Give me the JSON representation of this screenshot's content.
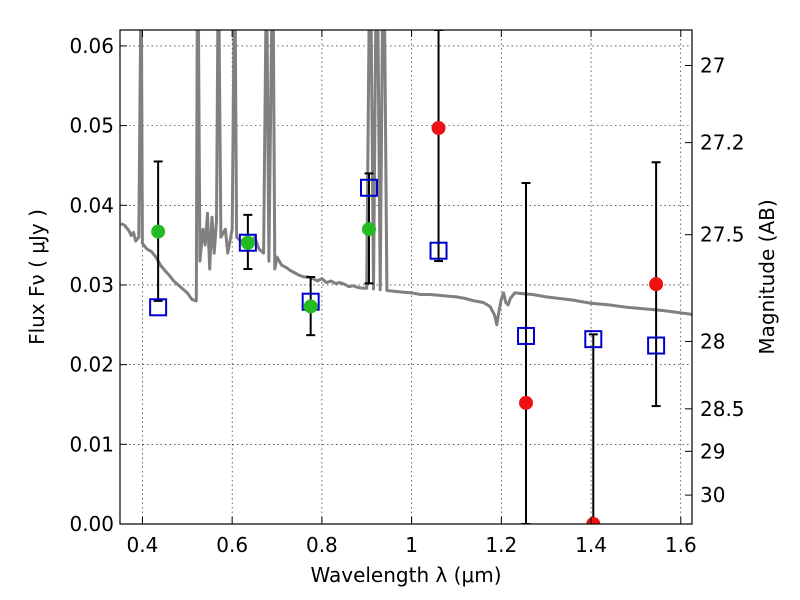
{
  "chart_data": {
    "type": "scatter",
    "xlabel": "Wavelength  λ (μm)",
    "ylabel": "Flux  Fν  ( μJy )",
    "ylabel_right": "Magnitude (AB)",
    "xlim": [
      0.35,
      1.625
    ],
    "ylim": [
      0.0,
      0.062
    ],
    "grid": true,
    "x_ticks": [
      {
        "value": 0.4,
        "label": "0.4"
      },
      {
        "value": 0.6,
        "label": "0.6"
      },
      {
        "value": 0.8,
        "label": "0.8"
      },
      {
        "value": 1.0,
        "label": "1"
      },
      {
        "value": 1.2,
        "label": "1.2"
      },
      {
        "value": 1.4,
        "label": "1.4"
      },
      {
        "value": 1.6,
        "label": "1.6"
      }
    ],
    "y_ticks": [
      {
        "value": 0.0,
        "label": "0.00"
      },
      {
        "value": 0.01,
        "label": "0.01"
      },
      {
        "value": 0.02,
        "label": "0.02"
      },
      {
        "value": 0.03,
        "label": "0.03"
      },
      {
        "value": 0.04,
        "label": "0.04"
      },
      {
        "value": 0.05,
        "label": "0.05"
      },
      {
        "value": 0.06,
        "label": "0.06"
      }
    ],
    "right_ticks": [
      {
        "mag": 27,
        "label": "27"
      },
      {
        "mag": 27.2,
        "label": "27.2"
      },
      {
        "mag": 27.5,
        "label": "27.5"
      },
      {
        "mag": 28,
        "label": "28"
      },
      {
        "mag": 28.5,
        "label": "28.5"
      },
      {
        "mag": 29,
        "label": "29"
      },
      {
        "mag": 30,
        "label": "30"
      }
    ],
    "colors": {
      "model": "#808080",
      "model_points": "#0000cc",
      "detected": "#22bb22",
      "undetected": "#ee1111",
      "errorbar": "#000000"
    },
    "model_spectrum": [
      [
        0.352,
        0.0377
      ],
      [
        0.36,
        0.0375
      ],
      [
        0.37,
        0.0368
      ],
      [
        0.375,
        0.0362
      ],
      [
        0.38,
        0.0366
      ],
      [
        0.385,
        0.0355
      ],
      [
        0.392,
        0.036
      ],
      [
        0.396,
        0.062
      ],
      [
        0.398,
        0.062
      ],
      [
        0.4,
        0.0352
      ],
      [
        0.41,
        0.0345
      ],
      [
        0.42,
        0.0342
      ],
      [
        0.43,
        0.0335
      ],
      [
        0.44,
        0.0325
      ],
      [
        0.45,
        0.0318
      ],
      [
        0.46,
        0.0312
      ],
      [
        0.47,
        0.0305
      ],
      [
        0.48,
        0.03
      ],
      [
        0.49,
        0.0295
      ],
      [
        0.5,
        0.029
      ],
      [
        0.51,
        0.0282
      ],
      [
        0.52,
        0.028
      ],
      [
        0.522,
        0.062
      ],
      [
        0.525,
        0.062
      ],
      [
        0.528,
        0.033
      ],
      [
        0.535,
        0.037
      ],
      [
        0.54,
        0.035
      ],
      [
        0.545,
        0.039
      ],
      [
        0.55,
        0.032
      ],
      [
        0.555,
        0.0385
      ],
      [
        0.56,
        0.034
      ],
      [
        0.565,
        0.038
      ],
      [
        0.568,
        0.062
      ],
      [
        0.571,
        0.062
      ],
      [
        0.575,
        0.036
      ],
      [
        0.585,
        0.037
      ],
      [
        0.59,
        0.034
      ],
      [
        0.6,
        0.037
      ],
      [
        0.604,
        0.062
      ],
      [
        0.607,
        0.062
      ],
      [
        0.61,
        0.036
      ],
      [
        0.62,
        0.0355
      ],
      [
        0.63,
        0.0358
      ],
      [
        0.64,
        0.035
      ],
      [
        0.65,
        0.036
      ],
      [
        0.66,
        0.0345
      ],
      [
        0.67,
        0.034
      ],
      [
        0.675,
        0.062
      ],
      [
        0.678,
        0.062
      ],
      [
        0.682,
        0.033
      ],
      [
        0.688,
        0.062
      ],
      [
        0.692,
        0.062
      ],
      [
        0.695,
        0.032
      ],
      [
        0.7,
        0.0335
      ],
      [
        0.71,
        0.0325
      ],
      [
        0.72,
        0.0322
      ],
      [
        0.73,
        0.0318
      ],
      [
        0.74,
        0.0315
      ],
      [
        0.75,
        0.0312
      ],
      [
        0.76,
        0.031
      ],
      [
        0.77,
        0.031
      ],
      [
        0.78,
        0.0308
      ],
      [
        0.79,
        0.0305
      ],
      [
        0.8,
        0.0308
      ],
      [
        0.81,
        0.0303
      ],
      [
        0.82,
        0.0305
      ],
      [
        0.83,
        0.0302
      ],
      [
        0.84,
        0.0303
      ],
      [
        0.85,
        0.0301
      ],
      [
        0.86,
        0.0298
      ],
      [
        0.87,
        0.0299
      ],
      [
        0.88,
        0.0297
      ],
      [
        0.89,
        0.0296
      ],
      [
        0.9,
        0.0296
      ],
      [
        0.905,
        0.062
      ],
      [
        0.91,
        0.062
      ],
      [
        0.915,
        0.0295
      ],
      [
        0.92,
        0.062
      ],
      [
        0.925,
        0.062
      ],
      [
        0.93,
        0.0294
      ],
      [
        0.935,
        0.062
      ],
      [
        0.94,
        0.062
      ],
      [
        0.945,
        0.0293
      ],
      [
        0.96,
        0.0292
      ],
      [
        0.98,
        0.0291
      ],
      [
        1.0,
        0.029
      ],
      [
        1.02,
        0.0288
      ],
      [
        1.04,
        0.0288
      ],
      [
        1.06,
        0.0287
      ],
      [
        1.08,
        0.0286
      ],
      [
        1.1,
        0.0285
      ],
      [
        1.12,
        0.0283
      ],
      [
        1.14,
        0.028
      ],
      [
        1.16,
        0.0278
      ],
      [
        1.175,
        0.0273
      ],
      [
        1.185,
        0.0262
      ],
      [
        1.19,
        0.025
      ],
      [
        1.195,
        0.0268
      ],
      [
        1.2,
        0.0282
      ],
      [
        1.205,
        0.029
      ],
      [
        1.21,
        0.0278
      ],
      [
        1.215,
        0.0275
      ],
      [
        1.22,
        0.0283
      ],
      [
        1.23,
        0.029
      ],
      [
        1.25,
        0.0289
      ],
      [
        1.27,
        0.0288
      ],
      [
        1.3,
        0.0285
      ],
      [
        1.33,
        0.0283
      ],
      [
        1.36,
        0.0281
      ],
      [
        1.4,
        0.0277
      ],
      [
        1.44,
        0.0275
      ],
      [
        1.48,
        0.0272
      ],
      [
        1.52,
        0.027
      ],
      [
        1.56,
        0.0268
      ],
      [
        1.6,
        0.0265
      ],
      [
        1.625,
        0.0263
      ]
    ],
    "model_points": [
      {
        "x": 0.435,
        "y": 0.0272
      },
      {
        "x": 0.635,
        "y": 0.0353
      },
      {
        "x": 0.775,
        "y": 0.0279
      },
      {
        "x": 0.905,
        "y": 0.0422
      },
      {
        "x": 1.06,
        "y": 0.0343
      },
      {
        "x": 1.255,
        "y": 0.0236
      },
      {
        "x": 1.405,
        "y": 0.0232
      },
      {
        "x": 1.545,
        "y": 0.0224
      }
    ],
    "observed": [
      {
        "x": 0.435,
        "y": 0.0367,
        "err_low": 0.0087,
        "err_high": 0.0088,
        "detected": true
      },
      {
        "x": 0.635,
        "y": 0.0353,
        "err_low": 0.0033,
        "err_high": 0.0035,
        "detected": true
      },
      {
        "x": 0.775,
        "y": 0.0273,
        "err_low": 0.0036,
        "err_high": 0.0037,
        "detected": true
      },
      {
        "x": 0.905,
        "y": 0.037,
        "err_low": 0.0068,
        "err_high": 0.007,
        "detected": true
      },
      {
        "x": 1.06,
        "y": 0.0497,
        "err_low": 0.0167,
        "err_high": 0.0123,
        "detected": false
      },
      {
        "x": 1.255,
        "y": 0.0152,
        "err_low": 0.0152,
        "err_high": 0.0276,
        "detected": false
      },
      {
        "x": 1.405,
        "y": 0.0,
        "err_low": 0.0,
        "err_high": 0.0238,
        "detected": false
      },
      {
        "x": 1.545,
        "y": 0.0301,
        "err_low": 0.0153,
        "err_high": 0.0153,
        "detected": false
      }
    ]
  }
}
